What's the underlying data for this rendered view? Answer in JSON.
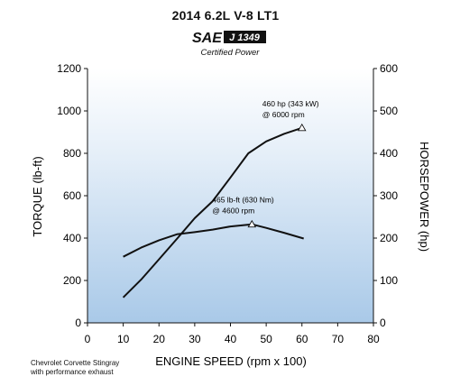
{
  "header": {
    "title": "2014 6.2L V-8 LT1"
  },
  "badge": {
    "brand": "SAE",
    "standard": "J 1349",
    "subtitle": "Certified Power"
  },
  "footnote": {
    "line1": "Chevrolet Corvette Stingray",
    "line2": "with performance exhaust"
  },
  "chart_data": {
    "type": "line",
    "title": "2014 6.2L V-8 LT1",
    "xlabel": "ENGINE SPEED (rpm x 100)",
    "ylabel": "TORQUE (lb-ft)",
    "y2label": "HORSEPOWER (hp)",
    "xlim": [
      0,
      80
    ],
    "ylim": [
      0,
      1200
    ],
    "y2lim": [
      0,
      600
    ],
    "xticks": [
      "0",
      "10",
      "20",
      "30",
      "40",
      "50",
      "60",
      "70",
      "80"
    ],
    "yticks": [
      "0",
      "200",
      "400",
      "600",
      "800",
      "1000",
      "1200"
    ],
    "y2ticks": [
      "0",
      "100",
      "200",
      "300",
      "400",
      "500",
      "600"
    ],
    "grid": false,
    "background": "gradient light blue",
    "series": [
      {
        "name": "torque",
        "axis": "left",
        "x": [
          10,
          15,
          20,
          25,
          30,
          35,
          40,
          46,
          50,
          55,
          60.5
        ],
        "y": [
          312,
          355,
          390,
          418,
          428,
          440,
          455,
          465,
          448,
          425,
          398
        ]
      },
      {
        "name": "horsepower",
        "axis": "right",
        "x": [
          10,
          15,
          20,
          25,
          30,
          35,
          40,
          45,
          50,
          55,
          60
        ],
        "y": [
          60,
          102,
          150,
          198,
          247,
          287,
          343,
          400,
          428,
          446,
          460
        ]
      }
    ],
    "annotations": [
      {
        "line1": "460 hp (343 kW)",
        "line2": "@ 6000 rpm",
        "x": 60,
        "y": 460,
        "axis": "right"
      },
      {
        "line1": "465 lb-ft (630 Nm)",
        "line2": "@ 4600 rpm",
        "x": 46,
        "y": 465,
        "axis": "left"
      }
    ]
  }
}
